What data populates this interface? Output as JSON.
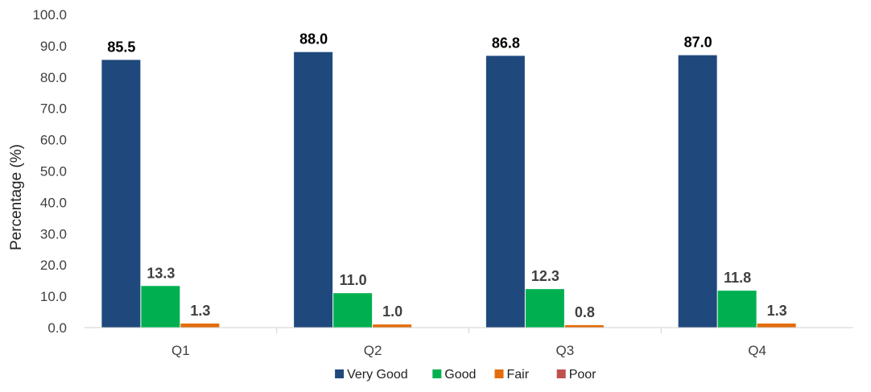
{
  "chart_data": {
    "type": "bar",
    "title": "",
    "xlabel": "",
    "ylabel": "Percentage (%)",
    "ylim": [
      0,
      100
    ],
    "yticks": [
      "0.0",
      "10.0",
      "20.0",
      "30.0",
      "40.0",
      "50.0",
      "60.0",
      "70.0",
      "80.0",
      "90.0",
      "100.0"
    ],
    "categories": [
      "Q1",
      "Q2",
      "Q3",
      "Q4"
    ],
    "series": [
      {
        "name": "Very Good",
        "color": "#1F497D",
        "values": [
          85.5,
          88.0,
          86.8,
          87.0
        ],
        "labels": [
          "85.5",
          "88.0",
          "86.8",
          "87.0"
        ]
      },
      {
        "name": "Good",
        "color": "#00B050",
        "values": [
          13.3,
          11.0,
          12.3,
          11.8
        ],
        "labels": [
          "13.3",
          "11.0",
          "12.3",
          "11.8"
        ]
      },
      {
        "name": "Fair",
        "color": "#E46C0A",
        "values": [
          1.3,
          1.0,
          0.8,
          1.3
        ],
        "labels": [
          "1.3",
          "1.0",
          "0.8",
          "1.3"
        ]
      },
      {
        "name": "Poor",
        "color": "#C0504D",
        "values": [
          0,
          0,
          0,
          0
        ],
        "labels": []
      }
    ],
    "grid": false,
    "legend_position": "bottom"
  }
}
